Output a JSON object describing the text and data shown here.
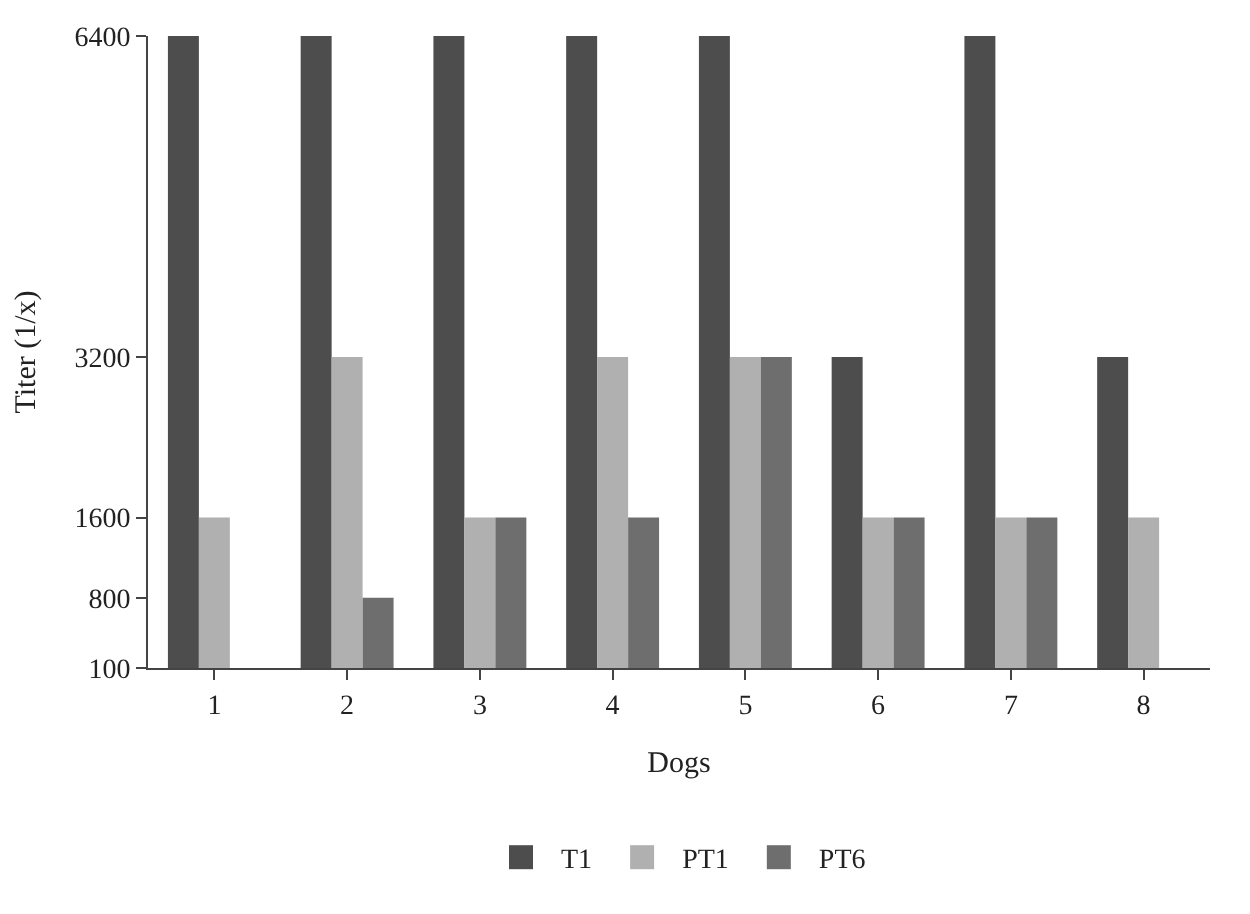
{
  "chart_data": {
    "type": "bar",
    "xlabel": "Dogs",
    "ylabel": "Titer (1/x)",
    "categories": [
      "1",
      "2",
      "3",
      "4",
      "5",
      "6",
      "7",
      "8"
    ],
    "series": [
      {
        "name": "T1",
        "color": "#4d4d4d",
        "values": [
          6400,
          6400,
          6400,
          6400,
          6400,
          3200,
          6400,
          3200
        ]
      },
      {
        "name": "PT1",
        "color": "#b0b0b0",
        "values": [
          1600,
          3200,
          1600,
          3200,
          3200,
          1600,
          1600,
          1600
        ]
      },
      {
        "name": "PT6",
        "color": "#6e6e6e",
        "values": [
          null,
          800,
          1600,
          1600,
          3200,
          1600,
          1600,
          null
        ]
      }
    ],
    "ylim": [
      100,
      6400
    ],
    "yticks": [
      100,
      800,
      1600,
      3200,
      6400
    ],
    "legend": "bottom"
  }
}
